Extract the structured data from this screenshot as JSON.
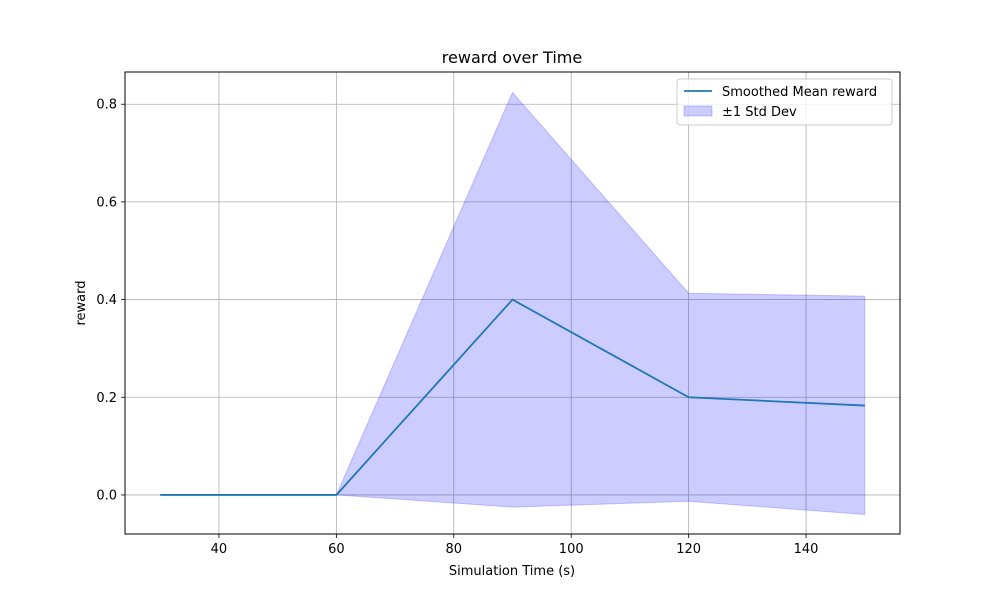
{
  "chart_data": {
    "type": "line",
    "title": "reward over Time",
    "xlabel": "Simulation Time (s)",
    "ylabel": "reward",
    "xlim": [
      24,
      156
    ],
    "ylim": [
      -0.08,
      0.866
    ],
    "xticks": [
      40,
      60,
      80,
      100,
      120,
      140
    ],
    "yticks": [
      0.0,
      0.2,
      0.4,
      0.6,
      0.8
    ],
    "xtick_labels": [
      "40",
      "60",
      "80",
      "100",
      "120",
      "140"
    ],
    "ytick_labels": [
      "0.0",
      "0.2",
      "0.4",
      "0.6",
      "0.8"
    ],
    "grid": true,
    "legend_position": "top-right",
    "x": [
      30,
      60,
      90,
      120,
      150
    ],
    "series": [
      {
        "name": "Smoothed Mean reward",
        "kind": "line",
        "color": "#1f77b4",
        "values": [
          0.0,
          0.0,
          0.4,
          0.2,
          0.183
        ]
      },
      {
        "name": "±1 Std Dev",
        "kind": "band",
        "color": "#0000ff",
        "opacity": 0.2,
        "lower": [
          0.0,
          0.0,
          -0.025,
          -0.013,
          -0.04
        ],
        "upper": [
          0.0,
          0.0,
          0.824,
          0.413,
          0.407
        ]
      }
    ]
  }
}
